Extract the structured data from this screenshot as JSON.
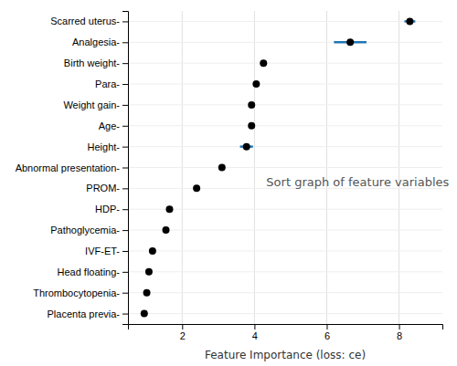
{
  "chart_data": {
    "type": "dot",
    "orientation": "horizontal",
    "categories": [
      "Placenta previa-",
      "Thrombocytopenia-",
      "Head floating-",
      "IVF-ET-",
      "Pathoglycemia-",
      "HDP-",
      "PROM-",
      "Abnormal presentation-",
      "Height-",
      "Age-",
      "Weight gain-",
      "Para-",
      "Birth weight-",
      "Analgesia-",
      "Scarred uterus-"
    ],
    "values": [
      0.95,
      1.02,
      1.08,
      1.18,
      1.55,
      1.65,
      2.4,
      3.1,
      3.78,
      3.92,
      3.92,
      4.05,
      4.25,
      6.65,
      8.3
    ],
    "error_low": [
      0.0,
      0.0,
      0.0,
      0.0,
      0.0,
      0.0,
      0.0,
      0.0,
      0.18,
      0.07,
      0.0,
      0.07,
      0.0,
      0.45,
      0.15
    ],
    "error_high": [
      0.0,
      0.0,
      0.0,
      0.0,
      0.0,
      0.0,
      0.0,
      0.0,
      0.18,
      0.07,
      0.0,
      0.07,
      0.0,
      0.45,
      0.15
    ],
    "color": "#000000",
    "xlabel": "Feature Importance (loss: ce)",
    "annotation": "Sort graph of feature variables",
    "xlim": [
      0.5,
      9.2
    ],
    "xticks": [
      2,
      4,
      6,
      8
    ],
    "grid": true
  }
}
